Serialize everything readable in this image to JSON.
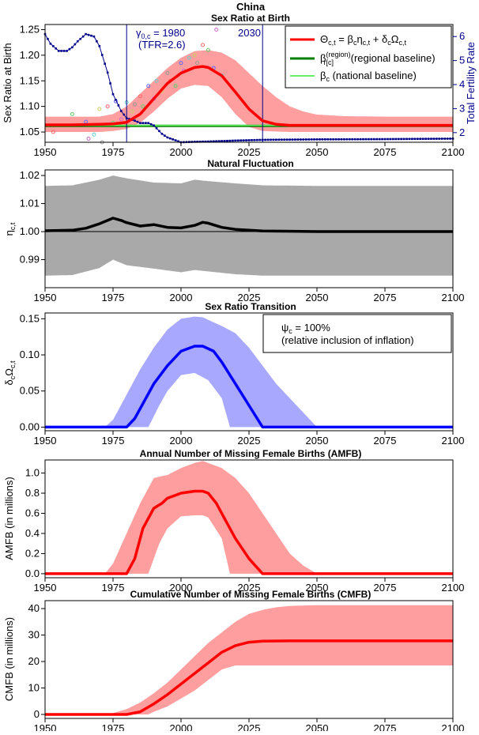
{
  "figure": {
    "title": "China",
    "colors": {
      "srb": "#ff0000",
      "srb_band": "#ff9e9e",
      "regional": "#007f00",
      "national": "#66ee66",
      "tfr": "#00008b",
      "fluct_band": "#a9a9a9",
      "fluct": "#000000",
      "trans": "#0000ff",
      "trans_band": "#a8a8ff",
      "ann": "#222288"
    }
  },
  "chart_data": [
    {
      "id": "srb",
      "type": "line",
      "title": "Sex Ratio at Birth",
      "ylabel": "Sex Ratio at Birth",
      "y2label": "Total Fertility Rate",
      "xlim": [
        1950,
        2100
      ],
      "ylim": [
        1.03,
        1.26
      ],
      "y2lim": [
        1.6,
        6.5
      ],
      "xticks": [
        1950,
        1975,
        2000,
        2025,
        2050,
        2075,
        2100
      ],
      "yticks": [
        1.05,
        1.1,
        1.15,
        1.2,
        1.25
      ],
      "y2ticks": [
        2,
        3,
        4,
        5,
        6
      ],
      "legend": {
        "position": "top-right",
        "entries": [
          "Θc,t = βcηc,t + δcΩc,t",
          "β(region)r[c] (regional baseline)",
          "βc (national baseline)"
        ]
      },
      "annotations": {
        "start_label": "γ0,c = 1980",
        "start_sub": "(TFR=2.6)",
        "start_year": 1980,
        "end_label": "2030",
        "end_year": 2030
      },
      "series": [
        {
          "name": "Θc,t = βcηc,t + δcΩc,t",
          "role": "median",
          "x": [
            1950,
            1960,
            1970,
            1975,
            1980,
            1985,
            1990,
            1995,
            2000,
            2005,
            2008,
            2010,
            2015,
            2020,
            2025,
            2030,
            2035,
            2040,
            2050,
            2060,
            2075,
            2100
          ],
          "values": [
            1.064,
            1.064,
            1.065,
            1.066,
            1.069,
            1.085,
            1.115,
            1.145,
            1.165,
            1.176,
            1.178,
            1.176,
            1.16,
            1.128,
            1.095,
            1.072,
            1.065,
            1.063,
            1.063,
            1.063,
            1.063,
            1.063
          ]
        },
        {
          "name": "upper",
          "role": "band-upper",
          "x": [
            1950,
            1970,
            1975,
            1980,
            1985,
            1990,
            1995,
            2000,
            2005,
            2010,
            2015,
            2020,
            2025,
            2030,
            2035,
            2040,
            2045,
            2050,
            2060,
            2075,
            2100
          ],
          "values": [
            1.08,
            1.08,
            1.085,
            1.1,
            1.125,
            1.15,
            1.175,
            1.195,
            1.208,
            1.21,
            1.205,
            1.19,
            1.165,
            1.14,
            1.118,
            1.1,
            1.09,
            1.084,
            1.081,
            1.08,
            1.08
          ]
        },
        {
          "name": "lower",
          "role": "band-lower",
          "x": [
            1950,
            1970,
            1975,
            1980,
            1985,
            1990,
            1995,
            2000,
            2005,
            2010,
            2015,
            2020,
            2025,
            2030,
            2040,
            2100
          ],
          "values": [
            1.05,
            1.05,
            1.052,
            1.056,
            1.068,
            1.09,
            1.115,
            1.135,
            1.142,
            1.14,
            1.118,
            1.085,
            1.06,
            1.052,
            1.05,
            1.05
          ]
        },
        {
          "name": "β(region)r[c] (regional baseline)",
          "role": "hline",
          "values": [
            1.062
          ]
        },
        {
          "name": "βc (national baseline)",
          "role": "hline",
          "values": [
            1.063
          ]
        },
        {
          "name": "Total Fertility Rate",
          "role": "tfr",
          "axis": "y2",
          "x": [
            1950,
            1952,
            1955,
            1958,
            1960,
            1962,
            1965,
            1968,
            1970,
            1973,
            1975,
            1978,
            1980,
            1983,
            1985,
            1988,
            1990,
            1993,
            1995,
            2000,
            2005,
            2010,
            2020,
            2030,
            2050,
            2075,
            2100
          ],
          "values": [
            6.1,
            5.7,
            5.4,
            5.4,
            5.55,
            5.8,
            6.1,
            6.0,
            5.6,
            4.5,
            3.6,
            2.9,
            2.6,
            2.5,
            2.4,
            2.4,
            2.3,
            1.95,
            1.8,
            1.6,
            1.62,
            1.63,
            1.67,
            1.7,
            1.72,
            1.73,
            1.75
          ]
        },
        {
          "name": "observations",
          "role": "obs",
          "x": [
            1953,
            1960,
            1965,
            1966,
            1968,
            1970,
            1971,
            1973,
            1975,
            1976,
            1978,
            1980,
            1982,
            1983,
            1985,
            1986,
            1988,
            1990,
            1991,
            1993,
            1995,
            1996,
            1998,
            2000,
            2001,
            2003,
            2005,
            2006,
            2008,
            2010,
            2012,
            2013,
            2015
          ],
          "values": [
            1.05,
            1.085,
            1.07,
            1.037,
            1.045,
            1.095,
            1.03,
            1.1,
            1.068,
            1.11,
            1.075,
            1.108,
            1.09,
            1.104,
            1.12,
            1.1,
            1.14,
            1.115,
            1.15,
            1.13,
            1.165,
            1.15,
            1.14,
            1.185,
            1.17,
            1.195,
            1.2,
            1.185,
            1.22,
            1.21,
            1.175,
            1.25,
            1.16
          ]
        }
      ]
    },
    {
      "id": "fluct",
      "type": "line",
      "title": "Natural Fluctuation",
      "ylabel": "ηc,t",
      "xlim": [
        1950,
        2100
      ],
      "ylim": [
        0.98,
        1.022
      ],
      "xticks": [
        1950,
        1975,
        2000,
        2025,
        2050,
        2075,
        2100
      ],
      "yticks": [
        0.99,
        1.0,
        1.01,
        1.02
      ],
      "hline": 1.0,
      "series": [
        {
          "name": "median",
          "role": "median",
          "x": [
            1950,
            1960,
            1965,
            1970,
            1975,
            1978,
            1980,
            1985,
            1990,
            1995,
            2000,
            2005,
            2008,
            2010,
            2015,
            2020,
            2030,
            2050,
            2075,
            2100
          ],
          "values": [
            1.0003,
            1.0005,
            1.0012,
            1.0028,
            1.0048,
            1.004,
            1.0032,
            1.002,
            1.0025,
            1.0015,
            1.0013,
            1.0022,
            1.0033,
            1.003,
            1.0015,
            1.0008,
            1.0002,
            1.0,
            1.0,
            1.0
          ]
        },
        {
          "name": "upper",
          "role": "band-upper",
          "x": [
            1950,
            1960,
            1970,
            1975,
            1980,
            1990,
            2000,
            2005,
            2010,
            2020,
            2030,
            2050,
            2100
          ],
          "values": [
            1.0163,
            1.0165,
            1.0185,
            1.02,
            1.019,
            1.0175,
            1.0172,
            1.0185,
            1.018,
            1.0172,
            1.0165,
            1.0163,
            1.0163
          ]
        },
        {
          "name": "lower",
          "role": "band-lower",
          "x": [
            1950,
            1960,
            1970,
            1975,
            1980,
            1990,
            2000,
            2005,
            2010,
            2020,
            2030,
            2050,
            2100
          ],
          "values": [
            0.9843,
            0.9845,
            0.987,
            0.99,
            0.988,
            0.9868,
            0.9855,
            0.9863,
            0.9858,
            0.9848,
            0.9843,
            0.9843,
            0.9843
          ]
        }
      ]
    },
    {
      "id": "trans",
      "type": "line",
      "title": "Sex Ratio Transition",
      "ylabel": "δcΩc,t",
      "xlim": [
        1950,
        2100
      ],
      "ylim": [
        -0.005,
        0.158
      ],
      "xticks": [
        1950,
        1975,
        2000,
        2025,
        2050,
        2075,
        2100
      ],
      "yticks": [
        0.0,
        0.05,
        0.1,
        0.15
      ],
      "legend_text": {
        "line1": "ψc = 100%",
        "line2": "(relative inclusion of inflation)"
      },
      "series": [
        {
          "name": "median",
          "role": "median",
          "x": [
            1950,
            1980,
            1983,
            1990,
            1995,
            2000,
            2005,
            2008,
            2012,
            2015,
            2020,
            2025,
            2030,
            2100
          ],
          "values": [
            0,
            0,
            0.012,
            0.06,
            0.085,
            0.105,
            0.112,
            0.112,
            0.105,
            0.09,
            0.06,
            0.03,
            0,
            0
          ]
        },
        {
          "name": "upper",
          "role": "band-upper",
          "x": [
            1950,
            1972,
            1975,
            1980,
            1985,
            1990,
            1995,
            2000,
            2005,
            2008,
            2012,
            2015,
            2020,
            2025,
            2030,
            2035,
            2040,
            2045,
            2050,
            2100
          ],
          "values": [
            0,
            0,
            0.01,
            0.045,
            0.08,
            0.11,
            0.135,
            0.15,
            0.153,
            0.152,
            0.145,
            0.14,
            0.13,
            0.11,
            0.085,
            0.06,
            0.04,
            0.02,
            0,
            0
          ]
        },
        {
          "name": "lower",
          "role": "band-lower",
          "x": [
            1950,
            1988,
            1992,
            1995,
            2000,
            2005,
            2010,
            2015,
            2018,
            2100
          ],
          "values": [
            0,
            0,
            0.03,
            0.05,
            0.072,
            0.075,
            0.065,
            0.04,
            0,
            0
          ]
        }
      ]
    },
    {
      "id": "amfb",
      "type": "line",
      "title": "Annual Number of Missing Female Births (AMFB)",
      "ylabel": "AMFB (in millions)",
      "xlim": [
        1950,
        2100
      ],
      "ylim": [
        -0.04,
        1.13
      ],
      "xticks": [
        1950,
        1975,
        2000,
        2025,
        2050,
        2075,
        2100
      ],
      "yticks": [
        0.0,
        0.2,
        0.4,
        0.6,
        0.8,
        1.0
      ],
      "series": [
        {
          "name": "median",
          "role": "median",
          "x": [
            1950,
            1980,
            1983,
            1986,
            1990,
            1993,
            1995,
            1998,
            2000,
            2005,
            2008,
            2010,
            2013,
            2016,
            2020,
            2025,
            2030,
            2100
          ],
          "values": [
            0,
            0,
            0.15,
            0.45,
            0.65,
            0.7,
            0.75,
            0.78,
            0.8,
            0.82,
            0.82,
            0.8,
            0.7,
            0.55,
            0.35,
            0.15,
            0,
            0
          ]
        },
        {
          "name": "upper",
          "role": "band-upper",
          "x": [
            1950,
            1972,
            1975,
            1980,
            1985,
            1990,
            1993,
            1995,
            2000,
            2005,
            2008,
            2010,
            2015,
            2020,
            2025,
            2030,
            2035,
            2040,
            2045,
            2050,
            2100
          ],
          "values": [
            0,
            0,
            0.1,
            0.4,
            0.7,
            0.95,
            0.97,
            0.98,
            1.05,
            1.1,
            1.12,
            1.1,
            1.05,
            0.95,
            0.8,
            0.6,
            0.4,
            0.2,
            0.08,
            0,
            0
          ]
        },
        {
          "name": "lower",
          "role": "band-lower",
          "x": [
            1950,
            1988,
            1992,
            1995,
            2000,
            2005,
            2008,
            2010,
            2015,
            2018,
            2100
          ],
          "values": [
            0,
            0,
            0.3,
            0.45,
            0.57,
            0.58,
            0.58,
            0.56,
            0.35,
            0,
            0
          ]
        }
      ]
    },
    {
      "id": "cmfb",
      "type": "line",
      "title": "Cumulative Number of Missing Female Births (CMFB)",
      "ylabel": "CMFB (in millions)",
      "xlim": [
        1950,
        2100
      ],
      "ylim": [
        -1.5,
        43
      ],
      "xticks": [
        1950,
        1975,
        2000,
        2025,
        2050,
        2075,
        2100
      ],
      "yticks": [
        0,
        10,
        20,
        30,
        40
      ],
      "series": [
        {
          "name": "median",
          "role": "median",
          "x": [
            1950,
            1980,
            1985,
            1990,
            1995,
            2000,
            2005,
            2010,
            2015,
            2020,
            2025,
            2030,
            2040,
            2100
          ],
          "values": [
            0,
            0,
            1,
            4,
            7.5,
            11.5,
            15.5,
            19.5,
            23.5,
            26,
            27.3,
            27.7,
            27.8,
            27.8
          ]
        },
        {
          "name": "upper",
          "role": "band-upper",
          "x": [
            1950,
            1972,
            1975,
            1980,
            1985,
            1990,
            1995,
            2000,
            2005,
            2010,
            2015,
            2020,
            2025,
            2030,
            2035,
            2040,
            2050,
            2100
          ],
          "values": [
            0,
            0,
            0.5,
            2,
            4.5,
            8,
            12,
            17,
            22,
            27,
            31,
            35,
            38,
            39.5,
            40.5,
            41,
            41.3,
            41.3
          ]
        },
        {
          "name": "lower",
          "role": "band-lower",
          "x": [
            1950,
            1988,
            1990,
            1995,
            2000,
            2005,
            2010,
            2015,
            2020,
            2100
          ],
          "values": [
            0,
            0,
            1,
            3,
            6,
            9,
            13,
            17,
            18.5,
            18.5
          ]
        }
      ]
    }
  ]
}
